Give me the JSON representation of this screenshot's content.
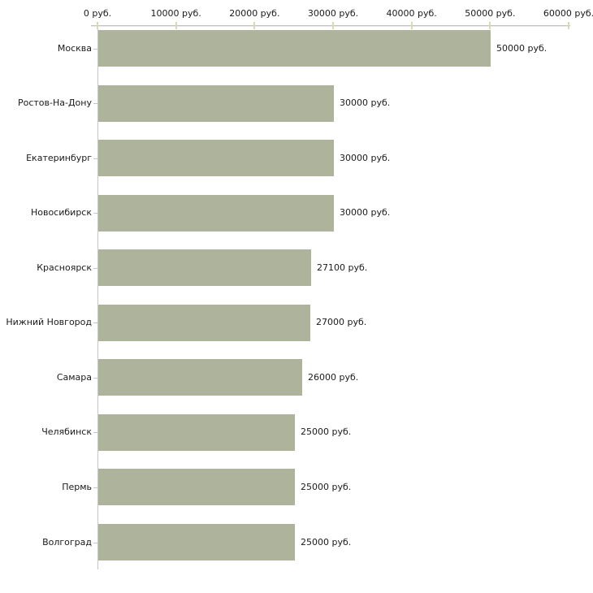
{
  "chart_data": {
    "type": "bar",
    "orientation": "horizontal",
    "title": "",
    "xlabel": "",
    "ylabel": "",
    "categories": [
      "Москва",
      "Ростов-На-Дону",
      "Екатеринбург",
      "Новосибирск",
      "Красноярск",
      "Нижний Новгород",
      "Самара",
      "Челябинск",
      "Пермь",
      "Волгоград"
    ],
    "values": [
      50000,
      30000,
      30000,
      30000,
      27100,
      27000,
      26000,
      25000,
      25000,
      25000
    ],
    "value_labels": [
      "50000 руб.",
      "30000 руб.",
      "30000 руб.",
      "30000 руб.",
      "27100 руб.",
      "27000 руб.",
      "26000 руб.",
      "25000 руб.",
      "25000 руб.",
      "25000 руб."
    ],
    "x_ticks": [
      0,
      10000,
      20000,
      30000,
      40000,
      50000,
      60000
    ],
    "x_tick_labels": [
      "0 руб.",
      "10000 руб.",
      "20000 руб.",
      "30000 руб.",
      "40000 руб.",
      "50000 руб.",
      "60000 руб."
    ],
    "xlim": [
      0,
      60000
    ],
    "axis_position": "top",
    "grid": false,
    "legend": null,
    "colors": {
      "bar": "#adb49b",
      "axis": "#c2c2c2",
      "tick": "#d9dab3",
      "text": "#1a1a1a",
      "background": "#ffffff"
    }
  }
}
